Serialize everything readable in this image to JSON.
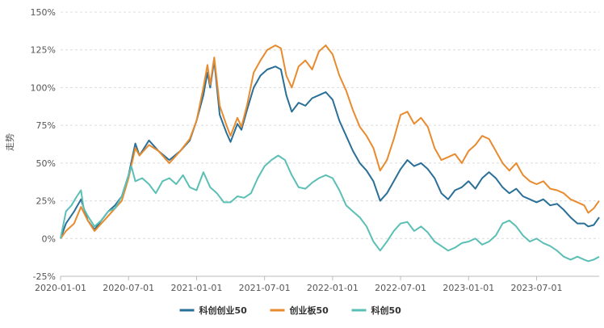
{
  "chart_data": {
    "type": "line",
    "title": "",
    "xlabel": "",
    "ylabel": "走势",
    "ylim": [
      -25,
      150
    ],
    "y_ticks": [
      -25,
      0,
      25,
      50,
      75,
      100,
      125,
      150
    ],
    "y_tick_labels": [
      "-25%",
      "0%",
      "25%",
      "50%",
      "75%",
      "100%",
      "125%",
      "150%"
    ],
    "x_domain": [
      2020.0,
      2023.96
    ],
    "x_ticks": [
      2020.0,
      2020.5,
      2021.0,
      2021.5,
      2022.0,
      2022.5,
      2023.0,
      2023.5
    ],
    "x_tick_labels": [
      "2020-01-01",
      "2020-07-01",
      "2021-01-01",
      "2021-07-01",
      "2022-01-01",
      "2022-07-01",
      "2023-01-01",
      "2023-07-01"
    ],
    "grid": "horizontal",
    "legend_position": "bottom-center",
    "series": [
      {
        "name": "科创创业50",
        "color": "#2a6f97",
        "points": [
          [
            2020.0,
            0
          ],
          [
            2020.04,
            10
          ],
          [
            2020.1,
            18
          ],
          [
            2020.15,
            26
          ],
          [
            2020.2,
            12
          ],
          [
            2020.25,
            6
          ],
          [
            2020.3,
            12
          ],
          [
            2020.35,
            18
          ],
          [
            2020.4,
            22
          ],
          [
            2020.45,
            28
          ],
          [
            2020.5,
            42
          ],
          [
            2020.55,
            63
          ],
          [
            2020.58,
            55
          ],
          [
            2020.65,
            65
          ],
          [
            2020.72,
            58
          ],
          [
            2020.8,
            52
          ],
          [
            2020.88,
            58
          ],
          [
            2020.95,
            65
          ],
          [
            2021.0,
            78
          ],
          [
            2021.05,
            95
          ],
          [
            2021.08,
            110
          ],
          [
            2021.1,
            100
          ],
          [
            2021.13,
            118
          ],
          [
            2021.17,
            82
          ],
          [
            2021.22,
            70
          ],
          [
            2021.25,
            64
          ],
          [
            2021.3,
            76
          ],
          [
            2021.33,
            72
          ],
          [
            2021.37,
            85
          ],
          [
            2021.42,
            100
          ],
          [
            2021.47,
            108
          ],
          [
            2021.52,
            112
          ],
          [
            2021.58,
            114
          ],
          [
            2021.62,
            112
          ],
          [
            2021.66,
            95
          ],
          [
            2021.7,
            84
          ],
          [
            2021.75,
            90
          ],
          [
            2021.8,
            88
          ],
          [
            2021.85,
            93
          ],
          [
            2021.9,
            95
          ],
          [
            2021.95,
            97
          ],
          [
            2022.0,
            92
          ],
          [
            2022.05,
            78
          ],
          [
            2022.1,
            68
          ],
          [
            2022.15,
            58
          ],
          [
            2022.2,
            50
          ],
          [
            2022.25,
            45
          ],
          [
            2022.3,
            38
          ],
          [
            2022.35,
            25
          ],
          [
            2022.4,
            30
          ],
          [
            2022.45,
            38
          ],
          [
            2022.5,
            46
          ],
          [
            2022.55,
            52
          ],
          [
            2022.6,
            48
          ],
          [
            2022.65,
            50
          ],
          [
            2022.7,
            46
          ],
          [
            2022.75,
            40
          ],
          [
            2022.8,
            30
          ],
          [
            2022.85,
            26
          ],
          [
            2022.9,
            32
          ],
          [
            2022.95,
            34
          ],
          [
            2023.0,
            38
          ],
          [
            2023.05,
            33
          ],
          [
            2023.1,
            40
          ],
          [
            2023.15,
            44
          ],
          [
            2023.2,
            40
          ],
          [
            2023.25,
            34
          ],
          [
            2023.3,
            30
          ],
          [
            2023.35,
            33
          ],
          [
            2023.4,
            28
          ],
          [
            2023.45,
            26
          ],
          [
            2023.5,
            24
          ],
          [
            2023.55,
            26
          ],
          [
            2023.6,
            22
          ],
          [
            2023.65,
            23
          ],
          [
            2023.7,
            19
          ],
          [
            2023.75,
            14
          ],
          [
            2023.8,
            10
          ],
          [
            2023.85,
            10
          ],
          [
            2023.88,
            8
          ],
          [
            2023.92,
            9
          ],
          [
            2023.96,
            14
          ]
        ]
      },
      {
        "name": "创业板50",
        "color": "#e88b2e",
        "points": [
          [
            2020.0,
            0
          ],
          [
            2020.04,
            5
          ],
          [
            2020.1,
            10
          ],
          [
            2020.15,
            21
          ],
          [
            2020.2,
            12
          ],
          [
            2020.25,
            5
          ],
          [
            2020.3,
            10
          ],
          [
            2020.35,
            15
          ],
          [
            2020.4,
            20
          ],
          [
            2020.45,
            25
          ],
          [
            2020.5,
            40
          ],
          [
            2020.55,
            60
          ],
          [
            2020.58,
            55
          ],
          [
            2020.65,
            62
          ],
          [
            2020.72,
            58
          ],
          [
            2020.8,
            50
          ],
          [
            2020.88,
            58
          ],
          [
            2020.95,
            66
          ],
          [
            2021.0,
            78
          ],
          [
            2021.05,
            100
          ],
          [
            2021.08,
            115
          ],
          [
            2021.1,
            102
          ],
          [
            2021.13,
            120
          ],
          [
            2021.17,
            88
          ],
          [
            2021.22,
            75
          ],
          [
            2021.25,
            68
          ],
          [
            2021.3,
            80
          ],
          [
            2021.33,
            74
          ],
          [
            2021.37,
            88
          ],
          [
            2021.42,
            110
          ],
          [
            2021.47,
            118
          ],
          [
            2021.52,
            125
          ],
          [
            2021.58,
            128
          ],
          [
            2021.62,
            126
          ],
          [
            2021.66,
            108
          ],
          [
            2021.7,
            100
          ],
          [
            2021.75,
            114
          ],
          [
            2021.8,
            118
          ],
          [
            2021.85,
            112
          ],
          [
            2021.9,
            124
          ],
          [
            2021.95,
            128
          ],
          [
            2022.0,
            122
          ],
          [
            2022.05,
            108
          ],
          [
            2022.1,
            98
          ],
          [
            2022.15,
            85
          ],
          [
            2022.2,
            74
          ],
          [
            2022.25,
            68
          ],
          [
            2022.3,
            60
          ],
          [
            2022.35,
            45
          ],
          [
            2022.4,
            52
          ],
          [
            2022.45,
            66
          ],
          [
            2022.5,
            82
          ],
          [
            2022.55,
            84
          ],
          [
            2022.6,
            76
          ],
          [
            2022.65,
            80
          ],
          [
            2022.7,
            74
          ],
          [
            2022.75,
            60
          ],
          [
            2022.8,
            52
          ],
          [
            2022.85,
            54
          ],
          [
            2022.9,
            56
          ],
          [
            2022.95,
            50
          ],
          [
            2023.0,
            58
          ],
          [
            2023.05,
            62
          ],
          [
            2023.1,
            68
          ],
          [
            2023.15,
            66
          ],
          [
            2023.2,
            58
          ],
          [
            2023.25,
            50
          ],
          [
            2023.3,
            45
          ],
          [
            2023.35,
            50
          ],
          [
            2023.4,
            42
          ],
          [
            2023.45,
            38
          ],
          [
            2023.5,
            36
          ],
          [
            2023.55,
            38
          ],
          [
            2023.6,
            33
          ],
          [
            2023.65,
            32
          ],
          [
            2023.7,
            30
          ],
          [
            2023.75,
            26
          ],
          [
            2023.8,
            24
          ],
          [
            2023.85,
            22
          ],
          [
            2023.88,
            17
          ],
          [
            2023.92,
            20
          ],
          [
            2023.96,
            25
          ]
        ]
      },
      {
        "name": "科创50",
        "color": "#5bbfb5",
        "points": [
          [
            2020.0,
            0
          ],
          [
            2020.04,
            18
          ],
          [
            2020.08,
            22
          ],
          [
            2020.12,
            28
          ],
          [
            2020.15,
            32
          ],
          [
            2020.17,
            20
          ],
          [
            2020.2,
            15
          ],
          [
            2020.25,
            8
          ],
          [
            2020.3,
            12
          ],
          [
            2020.35,
            18
          ],
          [
            2020.4,
            20
          ],
          [
            2020.45,
            28
          ],
          [
            2020.5,
            42
          ],
          [
            2020.52,
            48
          ],
          [
            2020.55,
            38
          ],
          [
            2020.6,
            40
          ],
          [
            2020.65,
            36
          ],
          [
            2020.7,
            30
          ],
          [
            2020.75,
            38
          ],
          [
            2020.8,
            40
          ],
          [
            2020.85,
            36
          ],
          [
            2020.9,
            42
          ],
          [
            2020.95,
            34
          ],
          [
            2021.0,
            32
          ],
          [
            2021.05,
            44
          ],
          [
            2021.1,
            34
          ],
          [
            2021.15,
            30
          ],
          [
            2021.2,
            24
          ],
          [
            2021.25,
            24
          ],
          [
            2021.3,
            28
          ],
          [
            2021.35,
            27
          ],
          [
            2021.4,
            30
          ],
          [
            2021.45,
            40
          ],
          [
            2021.5,
            48
          ],
          [
            2021.55,
            52
          ],
          [
            2021.6,
            55
          ],
          [
            2021.65,
            52
          ],
          [
            2021.7,
            42
          ],
          [
            2021.75,
            34
          ],
          [
            2021.8,
            33
          ],
          [
            2021.85,
            37
          ],
          [
            2021.9,
            40
          ],
          [
            2021.95,
            42
          ],
          [
            2022.0,
            40
          ],
          [
            2022.05,
            32
          ],
          [
            2022.1,
            22
          ],
          [
            2022.15,
            18
          ],
          [
            2022.2,
            14
          ],
          [
            2022.25,
            8
          ],
          [
            2022.3,
            -2
          ],
          [
            2022.35,
            -8
          ],
          [
            2022.4,
            -2
          ],
          [
            2022.45,
            5
          ],
          [
            2022.5,
            10
          ],
          [
            2022.55,
            11
          ],
          [
            2022.6,
            5
          ],
          [
            2022.65,
            8
          ],
          [
            2022.7,
            4
          ],
          [
            2022.75,
            -2
          ],
          [
            2022.8,
            -5
          ],
          [
            2022.85,
            -8
          ],
          [
            2022.9,
            -6
          ],
          [
            2022.95,
            -3
          ],
          [
            2023.0,
            -2
          ],
          [
            2023.05,
            0
          ],
          [
            2023.1,
            -4
          ],
          [
            2023.15,
            -2
          ],
          [
            2023.2,
            2
          ],
          [
            2023.25,
            10
          ],
          [
            2023.3,
            12
          ],
          [
            2023.35,
            8
          ],
          [
            2023.4,
            2
          ],
          [
            2023.45,
            -2
          ],
          [
            2023.5,
            0
          ],
          [
            2023.55,
            -3
          ],
          [
            2023.6,
            -5
          ],
          [
            2023.65,
            -8
          ],
          [
            2023.7,
            -12
          ],
          [
            2023.75,
            -14
          ],
          [
            2023.8,
            -12
          ],
          [
            2023.85,
            -14
          ],
          [
            2023.88,
            -15
          ],
          [
            2023.92,
            -14
          ],
          [
            2023.96,
            -12
          ]
        ]
      }
    ]
  }
}
